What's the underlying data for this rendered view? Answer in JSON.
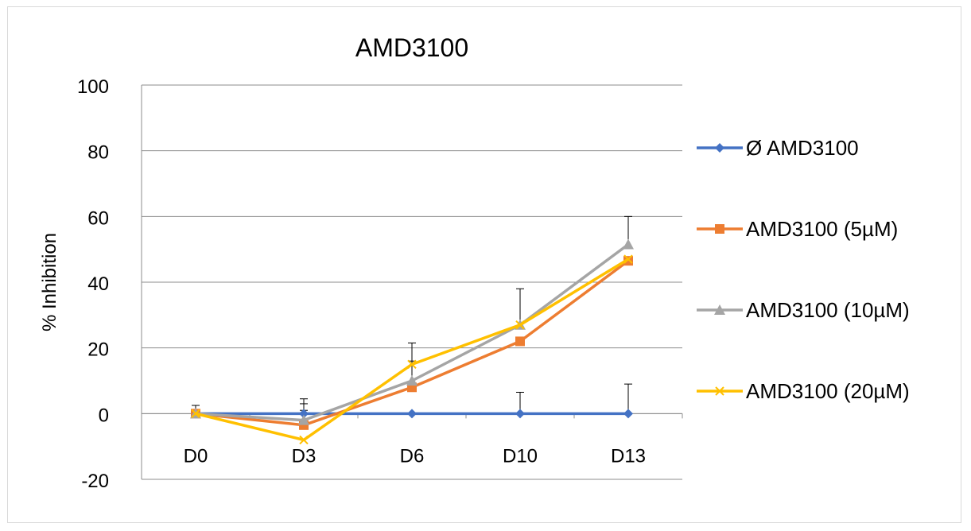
{
  "chart_data": {
    "type": "line",
    "title": "AMD3100",
    "xlabel": "",
    "ylabel": "% Inhibition",
    "categories": [
      "D0",
      "D3",
      "D6",
      "D10",
      "D13"
    ],
    "ylim": [
      -20,
      100
    ],
    "yticks": [
      -20,
      0,
      20,
      40,
      60,
      80,
      100
    ],
    "grid": true,
    "legend_position": "right",
    "series": [
      {
        "name": "Ø AMD3100",
        "color": "#4472C4",
        "marker": "diamond",
        "values": [
          0,
          0,
          0,
          0,
          0
        ],
        "error": [
          2.5,
          3,
          0,
          6.5,
          9
        ]
      },
      {
        "name": "AMD3100 (5µM)",
        "color": "#ED7D31",
        "marker": "square",
        "values": [
          0,
          -3.5,
          8,
          22,
          46.5
        ],
        "error": [
          2.5,
          4.5,
          8,
          0,
          0
        ]
      },
      {
        "name": "AMD3100 (10µM)",
        "color": "#A5A5A5",
        "marker": "triangle",
        "values": [
          0,
          -2,
          10,
          27,
          51.5
        ],
        "error": [
          2.5,
          6.5,
          0,
          11,
          8.5
        ]
      },
      {
        "name": "AMD3100 (20µM)",
        "color": "#FFC000",
        "marker": "x",
        "values": [
          0,
          -8,
          15,
          27,
          47
        ],
        "error": [
          0,
          0,
          6.5,
          0,
          0
        ]
      }
    ]
  }
}
